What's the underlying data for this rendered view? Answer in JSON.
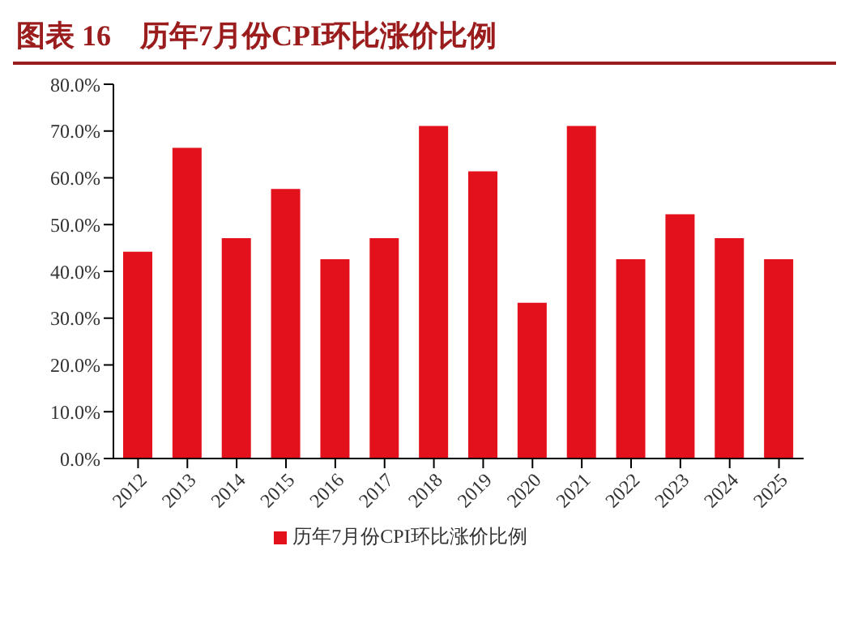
{
  "chart_data": {
    "type": "bar",
    "title": "图表 16　历年7月份CPI环比涨价比例",
    "categories": [
      "2012",
      "2013",
      "2014",
      "2015",
      "2016",
      "2017",
      "2018",
      "2019",
      "2020",
      "2021",
      "2022",
      "2023",
      "2024",
      "2025"
    ],
    "series": [
      {
        "name": "历年7月份CPI环比涨价比例",
        "color": "#e3111b",
        "values": [
          44.2,
          66.4,
          47.1,
          57.6,
          42.6,
          47.1,
          71.1,
          61.4,
          33.3,
          71.1,
          42.6,
          52.2,
          47.1,
          42.6
        ]
      }
    ],
    "ylim": [
      0,
      80
    ],
    "yticks": [
      {
        "value": 0,
        "label": "0.0%"
      },
      {
        "value": 10,
        "label": "10.0%"
      },
      {
        "value": 20,
        "label": "20.0%"
      },
      {
        "value": 30,
        "label": "30.0%"
      },
      {
        "value": 40,
        "label": "40.0%"
      },
      {
        "value": 50,
        "label": "50.0%"
      },
      {
        "value": 60,
        "label": "60.0%"
      },
      {
        "value": 70,
        "label": "70.0%"
      },
      {
        "value": 80,
        "label": "80.0%"
      }
    ],
    "grid": false,
    "legend": "bottom"
  }
}
